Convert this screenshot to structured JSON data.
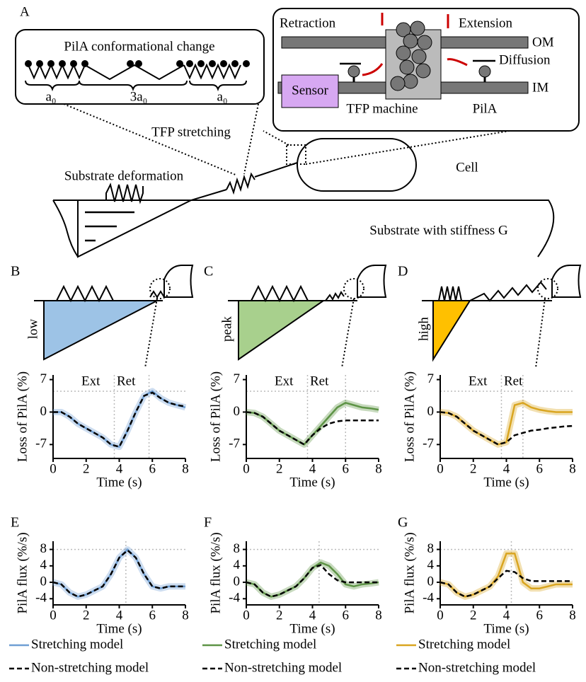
{
  "diagram": {
    "panel": "A",
    "callout_title": "PilA conformational change",
    "spacing_labels": [
      "a₀",
      "3a₀",
      "a₀"
    ],
    "tfp_stretching": "TFP stretching",
    "substrate_deformation": "Substrate deformation",
    "cell": "Cell",
    "substrate": "Substrate with stiffness G",
    "retraction": "Retraction",
    "extension": "Extension",
    "om": "OM",
    "im": "IM",
    "diffusion": "Diffusion",
    "sensor": "Sensor",
    "tfp_machine": "TFP machine",
    "pila": "PilA",
    "stiffness_labels": [
      "low",
      "peak",
      "high"
    ]
  },
  "chart_data": [
    {
      "type": "line",
      "panel": "B",
      "ylabel": "Loss of PilA (%)",
      "xlabel": "Time (s)",
      "annotations": [
        "Ext",
        "Ret"
      ],
      "x": [
        0,
        0.5,
        1,
        1.5,
        2,
        2.5,
        3,
        3.5,
        4,
        4.5,
        5,
        5.5,
        6,
        6.5,
        7,
        7.5,
        8
      ],
      "xlim": [
        0,
        8
      ],
      "xticks": [
        0,
        2,
        4,
        6,
        8
      ],
      "ylim": [
        -10,
        8
      ],
      "yticks": [
        -7,
        0,
        7
      ],
      "ref_x": [
        3.7,
        5.8
      ],
      "ref_y": [
        4.5
      ],
      "series": [
        {
          "color": "#6f9fd4",
          "values": [
            0,
            0,
            -1,
            -2.5,
            -3.5,
            -4.5,
            -5.5,
            -7,
            -7.5,
            -4,
            0,
            3.5,
            4.5,
            3,
            2,
            1.5,
            1
          ]
        },
        {
          "color": "#000000",
          "dashed": true,
          "values": [
            0,
            0,
            -1,
            -2.5,
            -3.5,
            -4.5,
            -5.5,
            -7,
            -7.5,
            -4,
            0,
            3.5,
            4.2,
            3,
            2,
            1.5,
            1.2
          ]
        }
      ]
    },
    {
      "type": "line",
      "panel": "C",
      "ylabel": "Loss of PilA (%)",
      "xlabel": "Time (s)",
      "annotations": [
        "Ext",
        "Ret"
      ],
      "x": [
        0,
        0.5,
        1,
        1.5,
        2,
        2.5,
        3,
        3.5,
        4,
        4.5,
        5,
        5.5,
        6,
        6.5,
        7,
        7.5,
        8
      ],
      "xlim": [
        0,
        8
      ],
      "xticks": [
        0,
        2,
        4,
        6,
        8
      ],
      "ylim": [
        -10,
        8
      ],
      "yticks": [
        -7,
        0,
        7
      ],
      "ref_x": [
        3.7,
        6
      ],
      "ref_y": [
        4.5
      ],
      "series": [
        {
          "color": "#5e9446",
          "values": [
            0,
            -0.2,
            -1,
            -2.5,
            -4,
            -5,
            -6,
            -7,
            -5,
            -3,
            -1,
            1,
            2,
            1.5,
            1,
            0.8,
            0.5
          ]
        },
        {
          "color": "#000000",
          "dashed": true,
          "values": [
            0,
            -0.2,
            -1,
            -2.5,
            -4,
            -5,
            -6,
            -7,
            -5,
            -3.5,
            -2.5,
            -2,
            -1.8,
            -1.8,
            -1.8,
            -1.8,
            -1.8
          ]
        }
      ]
    },
    {
      "type": "line",
      "panel": "D",
      "ylabel": "Loss of PilA (%)",
      "xlabel": "Time (s)",
      "annotations": [
        "Ext",
        "Ret"
      ],
      "x": [
        0,
        0.5,
        1,
        1.5,
        2,
        2.5,
        3,
        3.5,
        4,
        4.5,
        5,
        5.5,
        6,
        6.5,
        7,
        7.5,
        8
      ],
      "xlim": [
        0,
        8
      ],
      "xticks": [
        0,
        2,
        4,
        6,
        8
      ],
      "ylim": [
        -10,
        8
      ],
      "yticks": [
        -7,
        0,
        7
      ],
      "ref_x": [
        3.7,
        5
      ],
      "ref_y": [
        4.5
      ],
      "series": [
        {
          "color": "#d9a520",
          "values": [
            0,
            -0.2,
            -1,
            -2.5,
            -4,
            -5,
            -6,
            -7,
            -6.5,
            1.5,
            2,
            1,
            0.5,
            0.2,
            0,
            0,
            0
          ]
        },
        {
          "color": "#000000",
          "dashed": true,
          "values": [
            0,
            -0.2,
            -1,
            -2.5,
            -4,
            -5,
            -6,
            -7,
            -6.5,
            -5,
            -4.5,
            -4,
            -3.8,
            -3.5,
            -3.3,
            -3.1,
            -3
          ]
        }
      ]
    },
    {
      "type": "line",
      "panel": "E",
      "ylabel": "PilA flux (%/s)",
      "xlabel": "Time (s)",
      "x": [
        0,
        0.5,
        1,
        1.5,
        2,
        2.5,
        3,
        3.5,
        4,
        4.5,
        5,
        5.5,
        6,
        6.5,
        7,
        7.5,
        8
      ],
      "xlim": [
        0,
        8
      ],
      "xticks": [
        0,
        2,
        4,
        6,
        8
      ],
      "ylim": [
        -5.5,
        10
      ],
      "yticks": [
        -4,
        0,
        4,
        8
      ],
      "ref_x": [
        4.4
      ],
      "ref_y": [
        8
      ],
      "series": [
        {
          "name": "Stretching model",
          "color": "#6f9fd4",
          "values": [
            0,
            -0.5,
            -2.5,
            -3.5,
            -3,
            -2,
            -1,
            2,
            6,
            8,
            6,
            2,
            -1,
            -1.5,
            -1,
            -1,
            -1
          ]
        },
        {
          "name": "Non-stretching model",
          "color": "#000000",
          "dashed": true,
          "values": [
            0,
            -0.5,
            -2.5,
            -3.5,
            -3,
            -2,
            -1,
            2,
            6,
            7.8,
            6,
            2,
            -1,
            -1.5,
            -1,
            -1,
            -1
          ]
        }
      ]
    },
    {
      "type": "line",
      "panel": "F",
      "ylabel": "PilA flux (%/s)",
      "xlabel": "Time (s)",
      "x": [
        0,
        0.5,
        1,
        1.5,
        2,
        2.5,
        3,
        3.5,
        4,
        4.5,
        5,
        5.5,
        6,
        6.5,
        7,
        7.5,
        8
      ],
      "xlim": [
        0,
        8
      ],
      "xticks": [
        0,
        2,
        4,
        6,
        8
      ],
      "ylim": [
        -5.5,
        10
      ],
      "yticks": [
        -4,
        0,
        4,
        8
      ],
      "ref_x": [
        4.4
      ],
      "ref_y": [
        8
      ],
      "series": [
        {
          "name": "Stretching model",
          "color": "#5e9446",
          "values": [
            0,
            -0.5,
            -2.5,
            -3.5,
            -3,
            -2,
            -1,
            1,
            3.5,
            4.8,
            4,
            2,
            -0.5,
            -1,
            -0.5,
            -0.3,
            0
          ]
        },
        {
          "name": "Non-stretching model",
          "color": "#000000",
          "dashed": true,
          "values": [
            0,
            -0.5,
            -2.5,
            -3.5,
            -3,
            -2,
            -1,
            1,
            3.5,
            4.2,
            2,
            0.5,
            0,
            0,
            0,
            0,
            0
          ]
        }
      ]
    },
    {
      "type": "line",
      "panel": "G",
      "ylabel": "PilA flux (%/s)",
      "xlabel": "Time (s)",
      "x": [
        0,
        0.5,
        1,
        1.5,
        2,
        2.5,
        3,
        3.5,
        4,
        4.5,
        5,
        5.5,
        6,
        6.5,
        7,
        7.5,
        8
      ],
      "xlim": [
        0,
        8
      ],
      "xticks": [
        0,
        2,
        4,
        6,
        8
      ],
      "ylim": [
        -5.5,
        10
      ],
      "yticks": [
        -4,
        0,
        4,
        8
      ],
      "ref_x": [
        4.3
      ],
      "ref_y": [
        8
      ],
      "series": [
        {
          "name": "Stretching model",
          "color": "#d9a520",
          "values": [
            0,
            -0.5,
            -2.5,
            -3.5,
            -3,
            -2,
            -1,
            1.5,
            7,
            7,
            0,
            -1.5,
            -1.5,
            -1,
            -0.5,
            -0.5,
            -0.5
          ]
        },
        {
          "name": "Non-stretching model",
          "color": "#000000",
          "dashed": true,
          "values": [
            0,
            -0.5,
            -2.5,
            -3.5,
            -3,
            -2,
            -1,
            1,
            2.8,
            2.5,
            1,
            0.3,
            0.3,
            0.3,
            0.3,
            0.3,
            0.3
          ]
        }
      ]
    }
  ]
}
